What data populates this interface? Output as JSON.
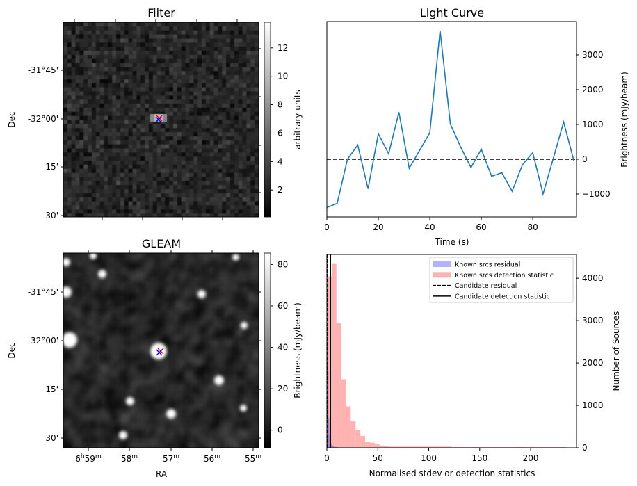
{
  "chart_data": [
    {
      "type": "heatmap",
      "title": "Filter",
      "ylabel": "Dec",
      "yticks": [
        "-31°45'",
        "-32°00'",
        "15'",
        "30'"
      ],
      "colorbar": {
        "label": "arbitrary units",
        "range": [
          0.1,
          13.8
        ],
        "ticks": [
          2,
          4,
          6,
          8,
          10,
          12
        ],
        "colormap": "gray"
      },
      "markers": [
        {
          "symbol": "x",
          "color": "#ff0000"
        },
        {
          "symbol": "x",
          "color": "#0000ff"
        }
      ]
    },
    {
      "type": "line",
      "title": "Light Curve",
      "xlabel": "Time (s)",
      "ylabel": "Brightness (mJy/beam)",
      "xlim": [
        0,
        97
      ],
      "ylim": [
        -1660,
        3960
      ],
      "xticks": [
        0,
        20,
        40,
        60,
        80
      ],
      "yticks": [
        -1000,
        0,
        1000,
        2000,
        3000
      ],
      "series": [
        {
          "name": "light curve",
          "color": "#1f77b4",
          "x": [
            0,
            4,
            8,
            12,
            16,
            20,
            24,
            28,
            32,
            36,
            40,
            44,
            48,
            52,
            56,
            60,
            64,
            68,
            72,
            76,
            80,
            84,
            88,
            92,
            96
          ],
          "y": [
            -1390,
            -1270,
            0,
            410,
            -850,
            730,
            160,
            1350,
            -260,
            250,
            760,
            3700,
            1010,
            350,
            -240,
            290,
            -490,
            -390,
            -920,
            -160,
            190,
            -1000,
            30,
            1070,
            -50
          ]
        }
      ],
      "hline": {
        "y": 0,
        "style": "dashed",
        "color": "#000000"
      }
    },
    {
      "type": "heatmap",
      "title": "GLEAM",
      "xlabel": "RA",
      "ylabel": "Dec",
      "xticks": [
        {
          "h": "6",
          "hs": "h",
          "m": "59",
          "ms": "m"
        },
        {
          "h": "",
          "hs": "",
          "m": "58",
          "ms": "m"
        },
        {
          "h": "",
          "hs": "",
          "m": "57",
          "ms": "m"
        },
        {
          "h": "",
          "hs": "",
          "m": "56",
          "ms": "m"
        },
        {
          "h": "",
          "hs": "",
          "m": "55",
          "ms": "m"
        }
      ],
      "yticks": [
        "-31°45'",
        "-32°00'",
        "15'",
        "30'"
      ],
      "colorbar": {
        "label": "Brightness (mJy/beam)",
        "range": [
          -8.5,
          85.5
        ],
        "ticks": [
          0,
          20,
          40,
          60,
          80
        ],
        "colormap": "gray"
      },
      "markers": [
        {
          "symbol": "x",
          "color": "#ff0000"
        },
        {
          "symbol": "x",
          "color": "#0000ff"
        }
      ]
    },
    {
      "type": "bar",
      "subtype": "histogram",
      "xlabel": "Normalised stdev or detection statistics",
      "ylabel": "Number of Sources",
      "xlim": [
        0,
        245
      ],
      "ylim": [
        0,
        4560
      ],
      "xticks": [
        0,
        50,
        100,
        150,
        200
      ],
      "yticks": [
        0,
        1000,
        2000,
        3000,
        4000
      ],
      "legend_position": "top-right",
      "series": [
        {
          "name": "Known srcs residual",
          "color": "#0000ff",
          "alpha": 0.3,
          "bin_width": 0.8,
          "values": [
            2400,
            1800,
            700,
            320,
            160,
            90,
            60,
            45,
            35,
            28,
            22,
            18,
            15,
            12,
            10,
            8,
            7,
            6,
            5,
            4
          ]
        },
        {
          "name": "Known srcs detection statistic",
          "color": "#ff0000",
          "alpha": 0.3,
          "bin_width": 4.7,
          "values": [
            4040,
            4350,
            2940,
            1615,
            975,
            620,
            415,
            280,
            140,
            120,
            80,
            55,
            38,
            27,
            27,
            27,
            27,
            27,
            27,
            27,
            27,
            27,
            27,
            27,
            27,
            27,
            16,
            16,
            16,
            16,
            16,
            16,
            16,
            16,
            16,
            16,
            16,
            16,
            16,
            16,
            16,
            16,
            16,
            16,
            16,
            16,
            16,
            16,
            16,
            16
          ]
        },
        {
          "name": "Candidate residual",
          "style": "dashed",
          "color": "#000000",
          "x": 0.4
        },
        {
          "name": "Candidate detection statistic",
          "style": "solid",
          "color": "#000000",
          "x": 3.6
        }
      ]
    }
  ]
}
